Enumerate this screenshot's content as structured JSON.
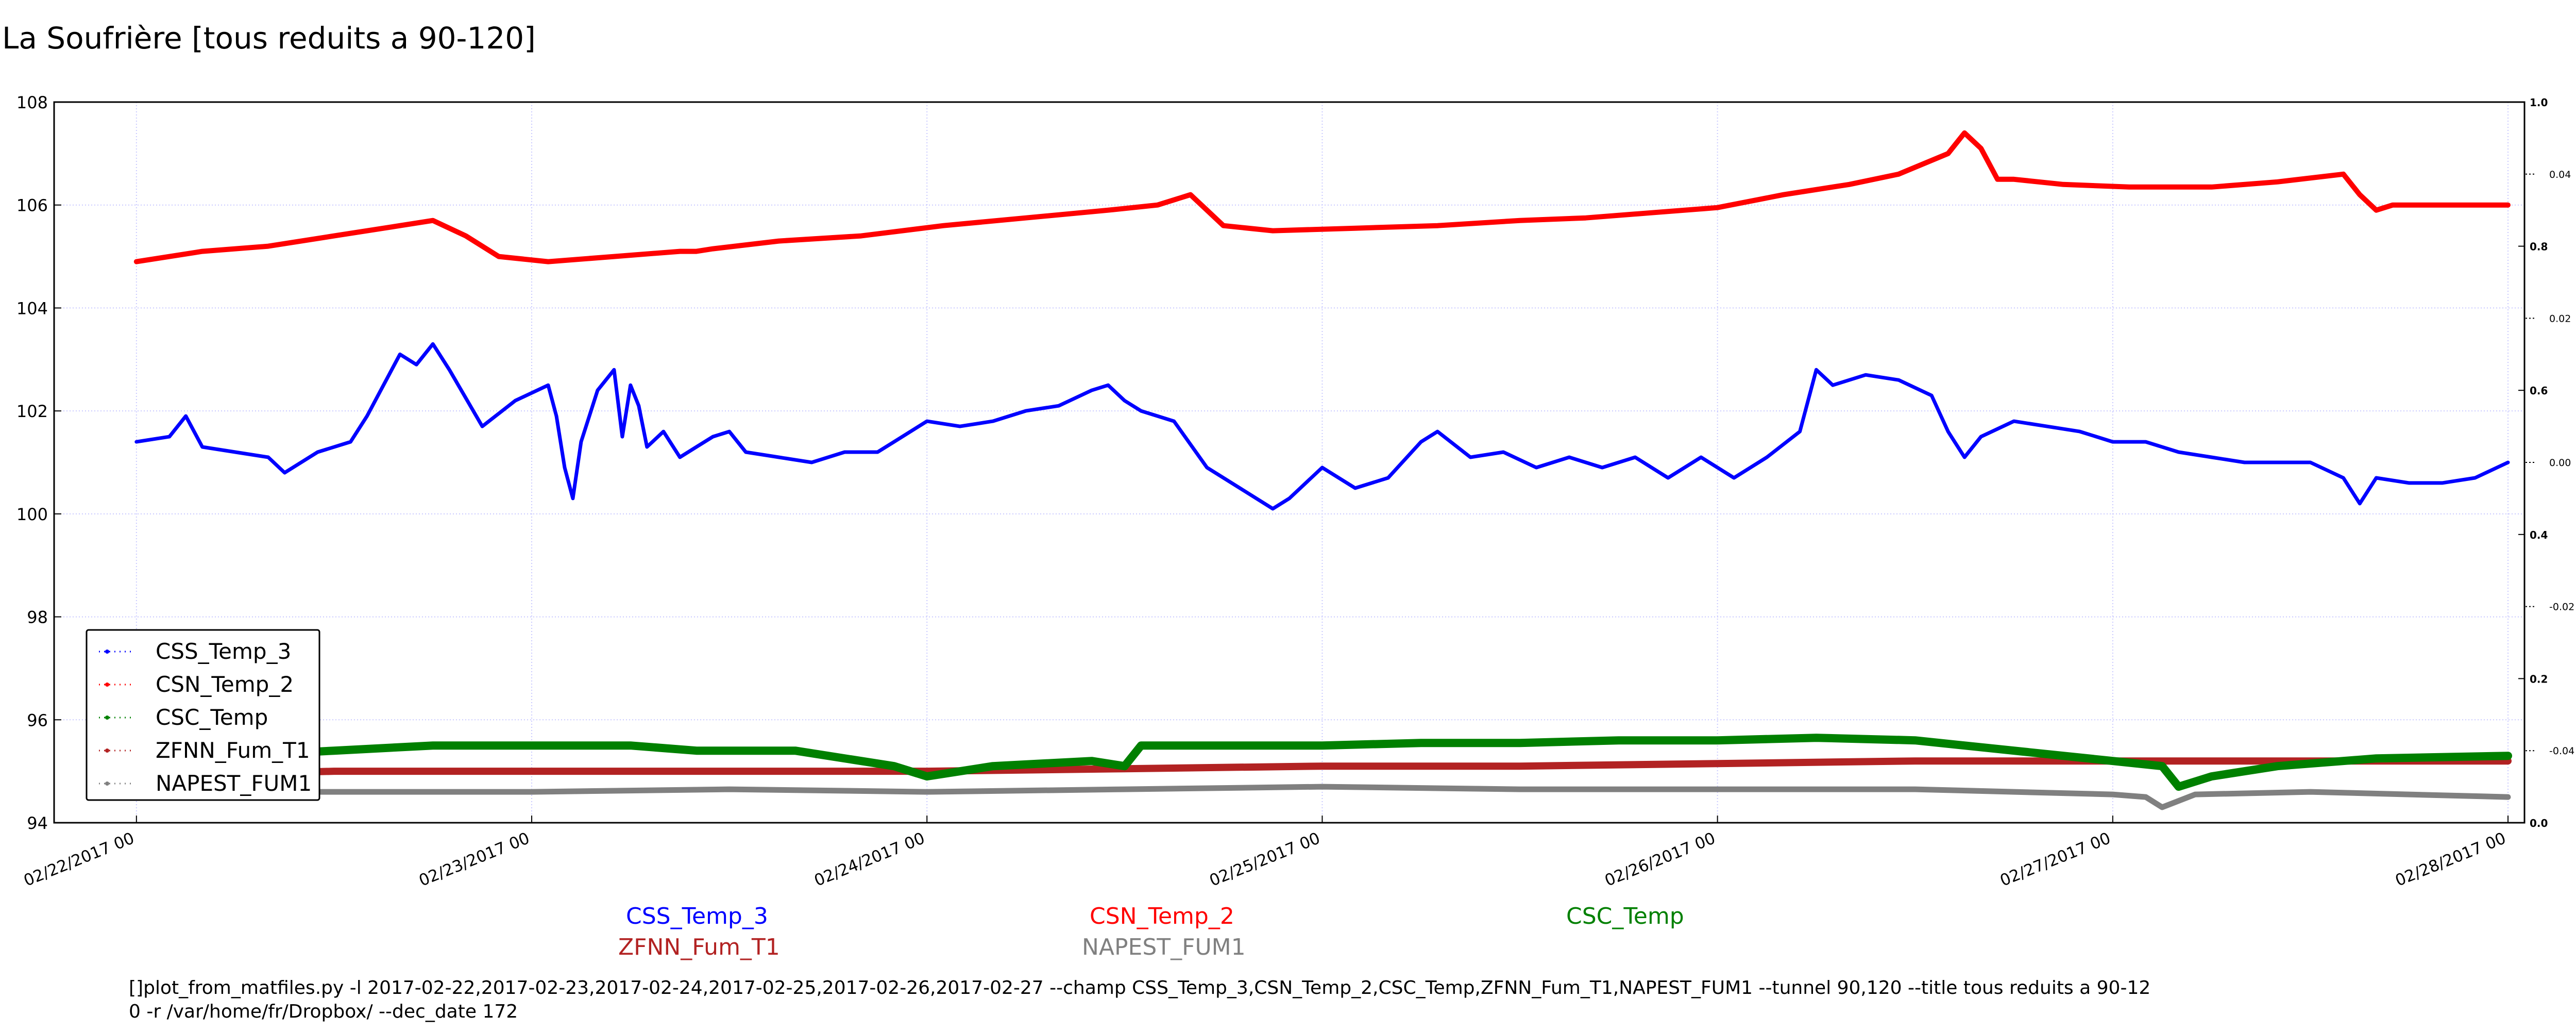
{
  "title": "La Soufrière [tous reduits a 90-120]",
  "chart_data": {
    "type": "scatter",
    "title": "La Soufrière [tous reduits a 90-120]",
    "xlabel": "",
    "ylabel": "",
    "grid": true,
    "legend_position": "left-bottom",
    "xlim": [
      "2017-02-21T19:00",
      "2017-02-28T01:00"
    ],
    "ylim": [
      94,
      108
    ],
    "y_ticks": [
      94,
      96,
      98,
      100,
      102,
      104,
      106,
      108
    ],
    "x_ticks": [
      "02/22/2017 00",
      "02/23/2017 00",
      "02/24/2017 00",
      "02/25/2017 00",
      "02/26/2017 00",
      "02/27/2017 00",
      "02/28/2017 00"
    ],
    "y2_ticks": [
      "0.0",
      "0.2",
      "0.4",
      "0.6",
      "0.8",
      "1.0"
    ],
    "y2_lim": [
      0,
      1
    ],
    "y3_ticks": [
      "0.04",
      "0.02",
      "0.00",
      "-0.02",
      "-0.04"
    ],
    "y3_lim": [
      -0.05,
      0.05
    ],
    "series": [
      {
        "name": "CSS_Temp_3",
        "color": "#0000ff",
        "points": [
          [
            "2017-02-22T00:00",
            101.4
          ],
          [
            "2017-02-22T02:00",
            101.5
          ],
          [
            "2017-02-22T03:00",
            101.9
          ],
          [
            "2017-02-22T04:00",
            101.3
          ],
          [
            "2017-02-22T06:00",
            101.2
          ],
          [
            "2017-02-22T08:00",
            101.1
          ],
          [
            "2017-02-22T09:00",
            100.8
          ],
          [
            "2017-02-22T11:00",
            101.2
          ],
          [
            "2017-02-22T13:00",
            101.4
          ],
          [
            "2017-02-22T14:00",
            101.9
          ],
          [
            "2017-02-22T16:00",
            103.1
          ],
          [
            "2017-02-22T17:00",
            102.9
          ],
          [
            "2017-02-22T18:00",
            103.3
          ],
          [
            "2017-02-22T19:00",
            102.8
          ],
          [
            "2017-02-22T21:00",
            101.7
          ],
          [
            "2017-02-22T23:00",
            102.2
          ],
          [
            "2017-02-23T01:00",
            102.5
          ],
          [
            "2017-02-23T01:30",
            101.9
          ],
          [
            "2017-02-23T02:00",
            100.9
          ],
          [
            "2017-02-23T02:30",
            100.3
          ],
          [
            "2017-02-23T03:00",
            101.4
          ],
          [
            "2017-02-23T04:00",
            102.4
          ],
          [
            "2017-02-23T05:00",
            102.8
          ],
          [
            "2017-02-23T05:30",
            101.5
          ],
          [
            "2017-02-23T06:00",
            102.5
          ],
          [
            "2017-02-23T06:30",
            102.1
          ],
          [
            "2017-02-23T07:00",
            101.3
          ],
          [
            "2017-02-23T08:00",
            101.6
          ],
          [
            "2017-02-23T09:00",
            101.1
          ],
          [
            "2017-02-23T10:00",
            101.3
          ],
          [
            "2017-02-23T11:00",
            101.5
          ],
          [
            "2017-02-23T12:00",
            101.6
          ],
          [
            "2017-02-23T13:00",
            101.2
          ],
          [
            "2017-02-23T15:00",
            101.1
          ],
          [
            "2017-02-23T17:00",
            101.0
          ],
          [
            "2017-02-23T19:00",
            101.2
          ],
          [
            "2017-02-23T21:00",
            101.2
          ],
          [
            "2017-02-23T22:00",
            101.4
          ],
          [
            "2017-02-24T00:00",
            101.8
          ],
          [
            "2017-02-24T02:00",
            101.7
          ],
          [
            "2017-02-24T04:00",
            101.8
          ],
          [
            "2017-02-24T06:00",
            102.0
          ],
          [
            "2017-02-24T08:00",
            102.1
          ],
          [
            "2017-02-24T10:00",
            102.4
          ],
          [
            "2017-02-24T11:00",
            102.5
          ],
          [
            "2017-02-24T12:00",
            102.2
          ],
          [
            "2017-02-24T13:00",
            102.0
          ],
          [
            "2017-02-24T15:00",
            101.8
          ],
          [
            "2017-02-24T17:00",
            100.9
          ],
          [
            "2017-02-24T19:00",
            100.5
          ],
          [
            "2017-02-24T21:00",
            100.1
          ],
          [
            "2017-02-24T22:00",
            100.3
          ],
          [
            "2017-02-25T00:00",
            100.9
          ],
          [
            "2017-02-25T02:00",
            100.5
          ],
          [
            "2017-02-25T04:00",
            100.7
          ],
          [
            "2017-02-25T06:00",
            101.4
          ],
          [
            "2017-02-25T07:00",
            101.6
          ],
          [
            "2017-02-25T09:00",
            101.1
          ],
          [
            "2017-02-25T11:00",
            101.2
          ],
          [
            "2017-02-25T13:00",
            100.9
          ],
          [
            "2017-02-25T15:00",
            101.1
          ],
          [
            "2017-02-25T17:00",
            100.9
          ],
          [
            "2017-02-25T19:00",
            101.1
          ],
          [
            "2017-02-25T21:00",
            100.7
          ],
          [
            "2017-02-25T23:00",
            101.1
          ],
          [
            "2017-02-26T01:00",
            100.7
          ],
          [
            "2017-02-26T03:00",
            101.1
          ],
          [
            "2017-02-26T05:00",
            101.6
          ],
          [
            "2017-02-26T06:00",
            102.8
          ],
          [
            "2017-02-26T07:00",
            102.5
          ],
          [
            "2017-02-26T09:00",
            102.7
          ],
          [
            "2017-02-26T11:00",
            102.6
          ],
          [
            "2017-02-26T13:00",
            102.3
          ],
          [
            "2017-02-26T14:00",
            101.6
          ],
          [
            "2017-02-26T15:00",
            101.1
          ],
          [
            "2017-02-26T16:00",
            101.5
          ],
          [
            "2017-02-26T18:00",
            101.8
          ],
          [
            "2017-02-26T20:00",
            101.7
          ],
          [
            "2017-02-26T22:00",
            101.6
          ],
          [
            "2017-02-27T00:00",
            101.4
          ],
          [
            "2017-02-27T02:00",
            101.4
          ],
          [
            "2017-02-27T04:00",
            101.2
          ],
          [
            "2017-02-27T06:00",
            101.1
          ],
          [
            "2017-02-27T08:00",
            101.0
          ],
          [
            "2017-02-27T10:00",
            101.0
          ],
          [
            "2017-02-27T12:00",
            101.0
          ],
          [
            "2017-02-27T14:00",
            100.7
          ],
          [
            "2017-02-27T15:00",
            100.2
          ],
          [
            "2017-02-27T16:00",
            100.7
          ],
          [
            "2017-02-27T18:00",
            100.6
          ],
          [
            "2017-02-27T20:00",
            100.6
          ],
          [
            "2017-02-27T22:00",
            100.7
          ],
          [
            "2017-02-28T00:00",
            101.0
          ]
        ]
      },
      {
        "name": "CSN_Temp_2",
        "color": "#ff0000",
        "points": [
          [
            "2017-02-22T00:00",
            104.9
          ],
          [
            "2017-02-22T04:00",
            105.1
          ],
          [
            "2017-02-22T08:00",
            105.2
          ],
          [
            "2017-02-22T12:00",
            105.4
          ],
          [
            "2017-02-22T16:00",
            105.6
          ],
          [
            "2017-02-22T18:00",
            105.7
          ],
          [
            "2017-02-22T20:00",
            105.4
          ],
          [
            "2017-02-22T22:00",
            105.0
          ],
          [
            "2017-02-23T01:00",
            104.9
          ],
          [
            "2017-02-23T05:00",
            105.0
          ],
          [
            "2017-02-23T09:00",
            105.1
          ],
          [
            "2017-02-23T10:00",
            105.1
          ],
          [
            "2017-02-23T11:00",
            105.15
          ],
          [
            "2017-02-23T15:00",
            105.3
          ],
          [
            "2017-02-23T20:00",
            105.4
          ],
          [
            "2017-02-24T01:00",
            105.6
          ],
          [
            "2017-02-24T06:00",
            105.75
          ],
          [
            "2017-02-24T11:00",
            105.9
          ],
          [
            "2017-02-24T14:00",
            106.0
          ],
          [
            "2017-02-24T16:00",
            106.2
          ],
          [
            "2017-02-24T17:00",
            105.9
          ],
          [
            "2017-02-24T18:00",
            105.6
          ],
          [
            "2017-02-24T21:00",
            105.5
          ],
          [
            "2017-02-25T02:00",
            105.55
          ],
          [
            "2017-02-25T07:00",
            105.6
          ],
          [
            "2017-02-25T12:00",
            105.7
          ],
          [
            "2017-02-25T16:00",
            105.75
          ],
          [
            "2017-02-25T20:00",
            105.85
          ],
          [
            "2017-02-26T00:00",
            105.95
          ],
          [
            "2017-02-26T04:00",
            106.2
          ],
          [
            "2017-02-26T08:00",
            106.4
          ],
          [
            "2017-02-26T11:00",
            106.6
          ],
          [
            "2017-02-26T14:00",
            107.0
          ],
          [
            "2017-02-26T15:00",
            107.4
          ],
          [
            "2017-02-26T16:00",
            107.1
          ],
          [
            "2017-02-26T17:00",
            106.5
          ],
          [
            "2017-02-26T18:00",
            106.5
          ],
          [
            "2017-02-26T21:00",
            106.4
          ],
          [
            "2017-02-27T01:00",
            106.35
          ],
          [
            "2017-02-27T06:00",
            106.35
          ],
          [
            "2017-02-27T10:00",
            106.45
          ],
          [
            "2017-02-27T14:00",
            106.6
          ],
          [
            "2017-02-27T15:00",
            106.2
          ],
          [
            "2017-02-27T16:00",
            105.9
          ],
          [
            "2017-02-27T17:00",
            106.0
          ],
          [
            "2017-02-27T20:00",
            106.0
          ],
          [
            "2017-02-28T00:00",
            106.0
          ]
        ]
      },
      {
        "name": "CSC_Temp",
        "color": "#008000",
        "points": [
          [
            "2017-02-22T00:00",
            95.2
          ],
          [
            "2017-02-22T01:00",
            95.3
          ],
          [
            "2017-02-22T06:00",
            95.3
          ],
          [
            "2017-02-22T12:00",
            95.4
          ],
          [
            "2017-02-22T18:00",
            95.5
          ],
          [
            "2017-02-23T00:00",
            95.5
          ],
          [
            "2017-02-23T06:00",
            95.5
          ],
          [
            "2017-02-23T10:00",
            95.4
          ],
          [
            "2017-02-23T16:00",
            95.4
          ],
          [
            "2017-02-23T20:00",
            95.2
          ],
          [
            "2017-02-23T22:00",
            95.1
          ],
          [
            "2017-02-24T00:00",
            94.9
          ],
          [
            "2017-02-24T04:00",
            95.1
          ],
          [
            "2017-02-24T10:00",
            95.2
          ],
          [
            "2017-02-24T12:00",
            95.1
          ],
          [
            "2017-02-24T13:00",
            95.5
          ],
          [
            "2017-02-24T18:00",
            95.5
          ],
          [
            "2017-02-25T00:00",
            95.5
          ],
          [
            "2017-02-25T06:00",
            95.55
          ],
          [
            "2017-02-25T12:00",
            95.55
          ],
          [
            "2017-02-25T18:00",
            95.6
          ],
          [
            "2017-02-26T00:00",
            95.6
          ],
          [
            "2017-02-26T06:00",
            95.65
          ],
          [
            "2017-02-26T12:00",
            95.6
          ],
          [
            "2017-02-26T18:00",
            95.4
          ],
          [
            "2017-02-27T00:00",
            95.2
          ],
          [
            "2017-02-27T03:00",
            95.1
          ],
          [
            "2017-02-27T04:00",
            94.7
          ],
          [
            "2017-02-27T06:00",
            94.9
          ],
          [
            "2017-02-27T10:00",
            95.1
          ],
          [
            "2017-02-27T16:00",
            95.25
          ],
          [
            "2017-02-28T00:00",
            95.3
          ]
        ]
      },
      {
        "name": "ZFNN_Fum_T1",
        "color": "#b22222",
        "points": [
          [
            "2017-02-22T00:00",
            94.9
          ],
          [
            "2017-02-22T12:00",
            95.0
          ],
          [
            "2017-02-23T00:00",
            95.0
          ],
          [
            "2017-02-23T12:00",
            95.0
          ],
          [
            "2017-02-24T00:00",
            95.0
          ],
          [
            "2017-02-24T12:00",
            95.05
          ],
          [
            "2017-02-25T00:00",
            95.1
          ],
          [
            "2017-02-25T12:00",
            95.1
          ],
          [
            "2017-02-26T00:00",
            95.15
          ],
          [
            "2017-02-26T12:00",
            95.2
          ],
          [
            "2017-02-27T00:00",
            95.2
          ],
          [
            "2017-02-27T12:00",
            95.2
          ],
          [
            "2017-02-28T00:00",
            95.2
          ]
        ]
      },
      {
        "name": "NAPEST_FUM1",
        "color": "#808080",
        "points": [
          [
            "2017-02-22T00:00",
            94.6
          ],
          [
            "2017-02-22T12:00",
            94.6
          ],
          [
            "2017-02-23T00:00",
            94.6
          ],
          [
            "2017-02-23T12:00",
            94.65
          ],
          [
            "2017-02-24T00:00",
            94.6
          ],
          [
            "2017-02-24T12:00",
            94.65
          ],
          [
            "2017-02-25T00:00",
            94.7
          ],
          [
            "2017-02-25T12:00",
            94.65
          ],
          [
            "2017-02-26T00:00",
            94.65
          ],
          [
            "2017-02-26T12:00",
            94.65
          ],
          [
            "2017-02-27T00:00",
            94.55
          ],
          [
            "2017-02-27T02:00",
            94.5
          ],
          [
            "2017-02-27T03:00",
            94.3
          ],
          [
            "2017-02-27T05:00",
            94.55
          ],
          [
            "2017-02-27T12:00",
            94.6
          ],
          [
            "2017-02-28T00:00",
            94.5
          ]
        ]
      }
    ]
  },
  "footer": {
    "command_line_1": "[]plot_from_matfiles.py -l 2017-02-22,2017-02-23,2017-02-24,2017-02-25,2017-02-26,2017-02-27 --champ CSS_Temp_3,CSN_Temp_2,CSC_Temp,ZFNN_Fum_T1,NAPEST_FUM1 --tunnel 90,120 --title tous reduits a 90-12",
    "command_line_2": "0 -r /var/home/fr/Dropbox/ --dec_date 172"
  }
}
